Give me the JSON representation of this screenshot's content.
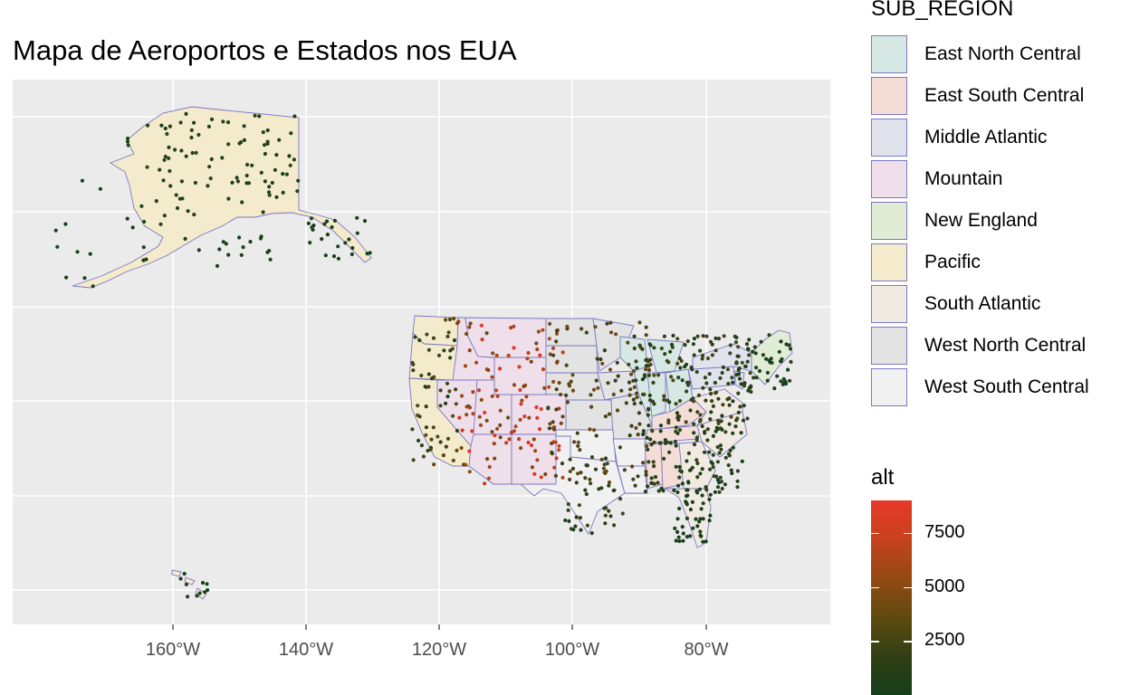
{
  "title": "Mapa de Aeroportos e Estados nos EUA",
  "axis": {
    "x_ticks": [
      "160°W",
      "140°W",
      "120°W",
      "100°W",
      "80°W"
    ]
  },
  "colors": {
    "panel_bg": "#ebebeb",
    "grid": "#ffffff",
    "state_border": "#7b78c2",
    "alt_low": "#15401c",
    "alt_high": "#e8382a"
  },
  "legend_subregion": {
    "title": "SUB_REGION",
    "items": [
      {
        "label": "East North Central",
        "color": "#d6e8e3"
      },
      {
        "label": "East South Central",
        "color": "#f3ddd6"
      },
      {
        "label": "Middle Atlantic",
        "color": "#e0e3ec"
      },
      {
        "label": "Mountain",
        "color": "#eedfea"
      },
      {
        "label": "New England",
        "color": "#e1ecd6"
      },
      {
        "label": "Pacific",
        "color": "#f4ebcd"
      },
      {
        "label": "South Atlantic",
        "color": "#f1eae3"
      },
      {
        "label": "West North Central",
        "color": "#e3e3e3"
      },
      {
        "label": "West South Central",
        "color": "#f1f1f1"
      }
    ]
  },
  "legend_alt": {
    "title": "alt",
    "ticks": [
      {
        "label": "7500",
        "value": 7500
      },
      {
        "label": "5000",
        "value": 5000
      },
      {
        "label": "2500",
        "value": 2500
      }
    ],
    "range": [
      0,
      9000
    ]
  }
}
